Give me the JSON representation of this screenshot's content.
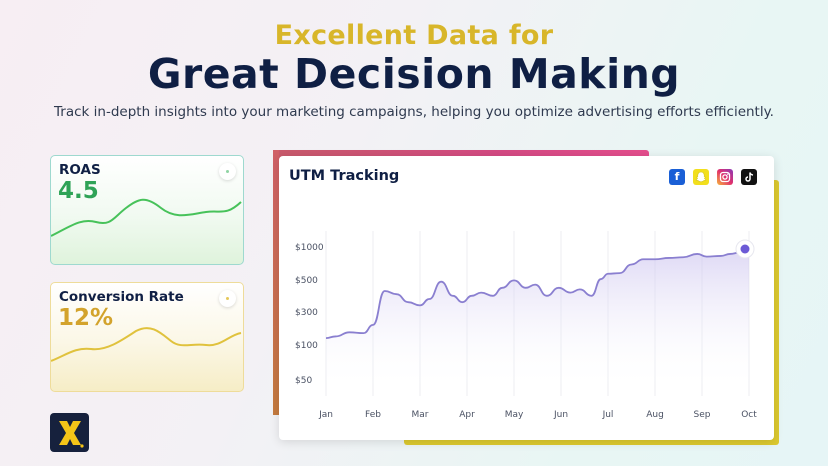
{
  "hero": {
    "kicker": "Excellent Data for",
    "title": "Great Decision Making",
    "subtitle": "Track in-depth insights into your marketing campaigns, helping you optimize advertising efforts efficiently."
  },
  "cards": {
    "roas": {
      "label": "ROAS",
      "value": "4.5",
      "color": "#2fa357"
    },
    "conversion": {
      "label": "Conversion Rate",
      "value": "12%",
      "color": "#d3a32c"
    }
  },
  "main": {
    "title": "UTM Tracking",
    "social_icons": [
      "facebook-icon",
      "snapchat-icon",
      "instagram-icon",
      "tiktok-icon"
    ]
  },
  "colors": {
    "navy": "#0f1f44",
    "gold": "#d8b62a",
    "line": "#8a7fd0",
    "marker": "#6c5ad6",
    "pink": "#d44a83",
    "yellow": "#dcc92f"
  },
  "chart_data": {
    "type": "area",
    "title": "UTM Tracking",
    "categories": [
      "Jan",
      "Feb",
      "Mar",
      "Apr",
      "May",
      "Jun",
      "Jul",
      "Aug",
      "Sep",
      "Oct"
    ],
    "y_ticks": [
      "$1000",
      "$500",
      "$300",
      "$100",
      "$50"
    ],
    "y_tick_values": [
      1000,
      500,
      300,
      100,
      50
    ],
    "scale": "ordinal",
    "series": [
      {
        "x": [
          0,
          0.2,
          0.5,
          0.8,
          1,
          1.25,
          1.5,
          1.75,
          2,
          2.2,
          2.45,
          2.7,
          2.9,
          3.1,
          3.3,
          3.55,
          3.75,
          4,
          4.25,
          4.45,
          4.7,
          4.95,
          5.2,
          5.4,
          5.65,
          5.85,
          6,
          6.25,
          6.5,
          6.75,
          7,
          7.3,
          7.6,
          7.9,
          8.1,
          8.4,
          8.6,
          8.8,
          9
        ],
        "values": [
          160,
          170,
          195,
          190,
          240,
          450,
          430,
          380,
          360,
          400,
          520,
          420,
          380,
          420,
          440,
          420,
          470,
          540,
          470,
          490,
          420,
          470,
          440,
          460,
          420,
          560,
          640,
          650,
          780,
          860,
          860,
          880,
          890,
          940,
          900,
          910,
          940,
          960,
          1000
        ]
      }
    ],
    "grid": "vertical",
    "legend": "none"
  }
}
